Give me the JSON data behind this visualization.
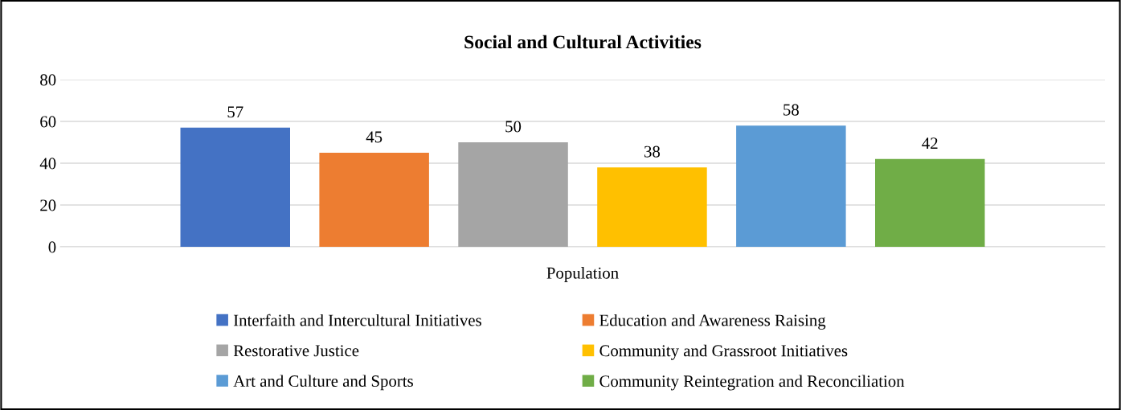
{
  "chart_data": {
    "type": "bar",
    "title": "Social and Cultural Activities",
    "categories": [
      "Population"
    ],
    "series": [
      {
        "name": "Interfaith and Intercultural Initiatives",
        "color": "#4472c4",
        "values": [
          57
        ]
      },
      {
        "name": "Education and Awareness Raising",
        "color": "#ed7d31",
        "values": [
          45
        ]
      },
      {
        "name": "Restorative Justice",
        "color": "#a5a5a5",
        "values": [
          50
        ]
      },
      {
        "name": "Community and Grassroot Initiatives",
        "color": "#ffc000",
        "values": [
          38
        ]
      },
      {
        "name": "Art and Culture and Sports",
        "color": "#5b9bd5",
        "values": [
          58
        ]
      },
      {
        "name": "Community Reintegration and Reconciliation",
        "color": "#70ad47",
        "values": [
          42
        ]
      }
    ],
    "ylim": [
      0,
      80
    ],
    "yticks": [
      0,
      20,
      40,
      60,
      80
    ],
    "grid": "y",
    "legend": "bottom",
    "data_labels": true
  }
}
